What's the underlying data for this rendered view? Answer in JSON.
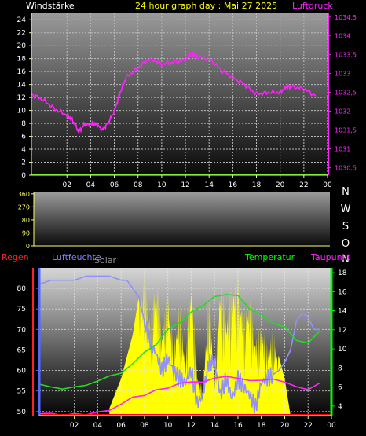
{
  "header": {
    "left_label": "Windstärke",
    "title": "24 hour graph day : Mai 27 2025",
    "right_label": "Luftdruck"
  },
  "panel2": {
    "dir_labels": [
      "N",
      "W",
      "S",
      "O",
      "N"
    ]
  },
  "panel3": {
    "left1": "Regen",
    "left2": "Luftfeuchte",
    "left3": "Solar",
    "right1": "Temperatur",
    "right2": "Taupunkt"
  },
  "colors": {
    "wind": "#00e000",
    "pressure": "#ff22ff",
    "temperature": "#22dd22",
    "dewpoint": "#ff22ff",
    "humidity": "#9090ff",
    "solar": "#ffff00",
    "rain": "#ff0000",
    "header_white": "#ffffff",
    "header_yellow": "#ffff00",
    "direction_axis": "#ffff66",
    "humidity_axis": "#5566ff",
    "temp_axis": "#00ff00"
  },
  "chart_data": [
    {
      "type": "line",
      "x_tick_labels": [
        "02",
        "04",
        "06",
        "08",
        "10",
        "12",
        "14",
        "16",
        "18",
        "20",
        "22",
        "00"
      ],
      "left_axis": {
        "label": "Windstärke",
        "ticks": [
          0,
          2,
          4,
          6,
          8,
          10,
          12,
          14,
          16,
          18,
          20,
          22,
          24
        ],
        "ylim": [
          0,
          25
        ]
      },
      "right_axis": {
        "label": "Luftdruck",
        "ticks": [
          "1030,5",
          "1031",
          "1031,5",
          "1032",
          "1032,5",
          "1033",
          "1033,5",
          "1034",
          "1034,5"
        ],
        "ylim": [
          1030.3,
          1034.6
        ]
      },
      "series": [
        {
          "name": "Windstärke",
          "x": [
            0,
            24
          ],
          "y": [
            0,
            0
          ]
        },
        {
          "name": "Luftdruck",
          "x": [
            0,
            1,
            2,
            3,
            3.5,
            4,
            4.5,
            5,
            5.5,
            6,
            6.5,
            7,
            7.5,
            8,
            9,
            10,
            11,
            12,
            13,
            13.5,
            14,
            15,
            16,
            17,
            18,
            19,
            20,
            21,
            21.5,
            22,
            23,
            24
          ],
          "y": [
            1032.45,
            1032.3,
            1032.05,
            1031.9,
            1031.75,
            1031.45,
            1031.65,
            1031.65,
            1031.65,
            1031.5,
            1031.7,
            1032.0,
            1032.5,
            1032.9,
            1033.15,
            1033.4,
            1033.25,
            1033.3,
            1033.35,
            1033.55,
            1033.45,
            1033.4,
            1033.1,
            1032.9,
            1032.7,
            1032.45,
            1032.5,
            1032.5,
            1032.65,
            1032.65,
            1032.6,
            1032.4
          ]
        }
      ]
    },
    {
      "type": "line",
      "x_tick_labels": [],
      "left_axis": {
        "ticks": [
          0,
          90,
          180,
          270,
          360
        ],
        "ylim": [
          0,
          370
        ]
      },
      "right_axis": {
        "label": "N W S O N"
      },
      "series": []
    },
    {
      "type": "line",
      "x_tick_labels": [
        "02",
        "04",
        "06",
        "08",
        "10",
        "12",
        "14",
        "16",
        "18",
        "20",
        "22",
        "00"
      ],
      "left_axis": {
        "label": "Luftfeuchte",
        "ticks": [
          50,
          55,
          60,
          65,
          70,
          75,
          80
        ],
        "ylim": [
          49,
          85
        ]
      },
      "right_axis": {
        "label": "Temperatur",
        "ticks": [
          4,
          6,
          8,
          10,
          12,
          14,
          16,
          18
        ],
        "ylim": [
          3,
          18.5
        ]
      },
      "series": [
        {
          "name": "Luftfeuchte",
          "x": [
            0,
            1,
            2,
            3,
            4,
            5,
            6,
            7,
            7.5,
            8,
            8.5,
            9,
            9.5,
            10,
            10.5,
            11,
            11.5,
            12,
            12.5,
            13,
            13.5,
            14,
            14.5,
            15,
            15.5,
            16,
            16.5,
            17,
            17.5,
            18,
            18.5,
            19,
            19.5,
            20,
            20.5,
            21,
            21.5,
            22,
            22.5,
            23,
            23.5,
            24
          ],
          "y": [
            81,
            82,
            82,
            82,
            83,
            83,
            83,
            82,
            82,
            80,
            78,
            72,
            67,
            64,
            60,
            63,
            60,
            58,
            57,
            60,
            52,
            54,
            62,
            62,
            54,
            58,
            53,
            58,
            56,
            54,
            51,
            57,
            58,
            59,
            60,
            62,
            65,
            72,
            74,
            73,
            70,
            70
          ]
        },
        {
          "name": "Temperatur",
          "x": [
            0,
            1,
            2,
            3,
            4,
            5,
            6,
            7,
            8,
            9,
            10,
            11,
            12,
            13,
            14,
            15,
            16,
            17,
            18,
            19,
            20,
            21,
            22,
            23,
            24
          ],
          "y": [
            6.3,
            6.0,
            5.8,
            6.0,
            6.2,
            6.6,
            7.2,
            7.4,
            8.5,
            9.6,
            10.5,
            12.0,
            12.8,
            13.8,
            14.6,
            15.4,
            15.8,
            15.5,
            14.3,
            13.5,
            12.8,
            12.2,
            11.0,
            10.5,
            12.0
          ]
        },
        {
          "name": "Taupunkt",
          "x": [
            0,
            1,
            2,
            3,
            4,
            5,
            6,
            7,
            8,
            9,
            10,
            11,
            12,
            13,
            14,
            15,
            16,
            17,
            18,
            19,
            20,
            21,
            22,
            23,
            24
          ],
          "y": [
            3.2,
            3.2,
            3.1,
            3.1,
            3.2,
            3.3,
            3.6,
            4.2,
            4.9,
            5.2,
            5.6,
            6.0,
            6.3,
            6.6,
            6.5,
            6.9,
            7.2,
            6.8,
            6.8,
            6.6,
            6.9,
            6.5,
            6.0,
            5.8,
            6.3
          ]
        },
        {
          "name": "Solar",
          "x": [
            6,
            6.5,
            7,
            7.5,
            8,
            8.5,
            9,
            9.5,
            10,
            10.5,
            11,
            11.5,
            12,
            12.5,
            13,
            13.5,
            14,
            14.5,
            15,
            15.5,
            16,
            16.5,
            17,
            17.5,
            18,
            18.5,
            19,
            19.5,
            20,
            20.5,
            21,
            21.5
          ],
          "y": [
            0.05,
            0.15,
            0.25,
            0.4,
            0.55,
            0.8,
            1.0,
            0.7,
            1.0,
            0.6,
            0.9,
            0.5,
            0.8,
            0.4,
            1.0,
            0.3,
            0.2,
            0.9,
            0.3,
            1.0,
            0.7,
            0.95,
            1.0,
            0.7,
            0.85,
            0.55,
            0.65,
            0.5,
            0.6,
            0.4,
            0.25,
            0.0
          ]
        }
      ]
    }
  ]
}
